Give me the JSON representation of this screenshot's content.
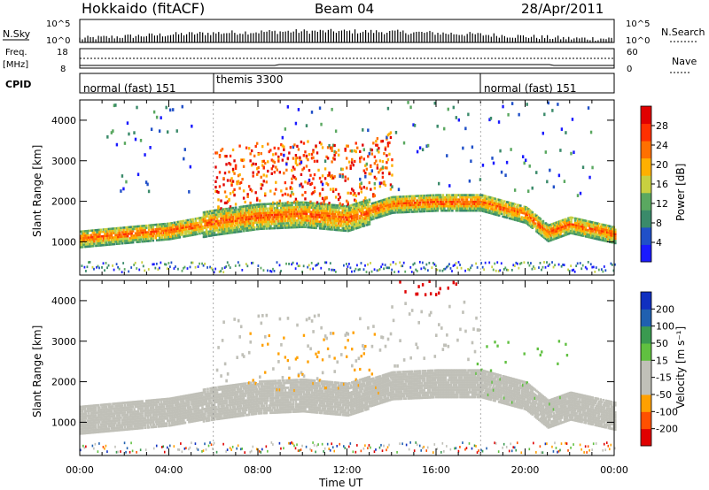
{
  "header": {
    "station": "Hokkaido (fitACF)",
    "beam": "Beam 04",
    "date": "28/Apr/2011"
  },
  "top_panels": {
    "nsky_label": "N.Sky",
    "nsky_ticks": [
      "10^5",
      "10^0"
    ],
    "nsearch_label": "N.Search",
    "nsearch_ticks": [
      "10^5",
      "10^0"
    ],
    "freq_label": "Freq.",
    "freq_unit": "[MHz]",
    "freq_ticks": [
      "18",
      "8"
    ],
    "nave_label": "Nave",
    "nave_ticks": [
      "60",
      "0"
    ],
    "cpid_label": "CPID",
    "cpid_modes": [
      {
        "name": "normal (fast) 151",
        "start_hour": 0
      },
      {
        "name": "themis 3300",
        "start_hour": 6
      },
      {
        "name": "normal (fast) 151",
        "start_hour": 18
      }
    ]
  },
  "colors": {
    "power_scale": [
      "#1a1aff",
      "#2050c8",
      "#3a8a6a",
      "#5aa860",
      "#c8d040",
      "#ffb000",
      "#ff7000",
      "#ff3000",
      "#e00000"
    ],
    "velocity_scale": [
      "#e00000",
      "#ff5000",
      "#ffa000",
      "#c0c0b8",
      "#c0c0b8",
      "#60c040",
      "#3a9a50",
      "#2060b0",
      "#1030c0"
    ],
    "ground_scatter": "#c0c0b8"
  },
  "chart_data": [
    {
      "type": "heatmap",
      "title": "Power",
      "ylabel": "Slant Range [km]",
      "xlabel": "Time UT",
      "x_ticks": [
        "00:00",
        "04:00",
        "08:00",
        "12:00",
        "16:00",
        "20:00",
        "00:00"
      ],
      "y_ticks": [
        "1000",
        "2000",
        "3000",
        "4000"
      ],
      "ylim": [
        180,
        4500
      ],
      "xlim_hours": [
        0,
        24
      ],
      "colorbar": {
        "label": "Power [dB]",
        "ticks": [
          "4",
          "8",
          "12",
          "16",
          "20",
          "24",
          "28"
        ],
        "range": [
          0,
          32
        ]
      },
      "main_band": {
        "hours": [
          0,
          2,
          4,
          6,
          8,
          10,
          12,
          14,
          16,
          18,
          20,
          21,
          22,
          24
        ],
        "center_km": [
          1050,
          1150,
          1250,
          1450,
          1600,
          1650,
          1550,
          1900,
          1950,
          1950,
          1650,
          1200,
          1400,
          1150
        ]
      }
    },
    {
      "type": "heatmap",
      "title": "Velocity",
      "ylabel": "Slant Range [km]",
      "xlabel": "Time UT",
      "x_ticks": [
        "00:00",
        "04:00",
        "08:00",
        "12:00",
        "16:00",
        "20:00",
        "00:00"
      ],
      "y_ticks": [
        "1000",
        "2000",
        "3000",
        "4000"
      ],
      "ylim": [
        180,
        4500
      ],
      "xlim_hours": [
        0,
        24
      ],
      "colorbar": {
        "label": "Velocity [m s⁻¹]",
        "ticks": [
          "-200",
          "-100",
          "-50",
          "-15",
          "15",
          "50",
          "100",
          "200"
        ],
        "range": [
          -250,
          250
        ]
      }
    }
  ]
}
